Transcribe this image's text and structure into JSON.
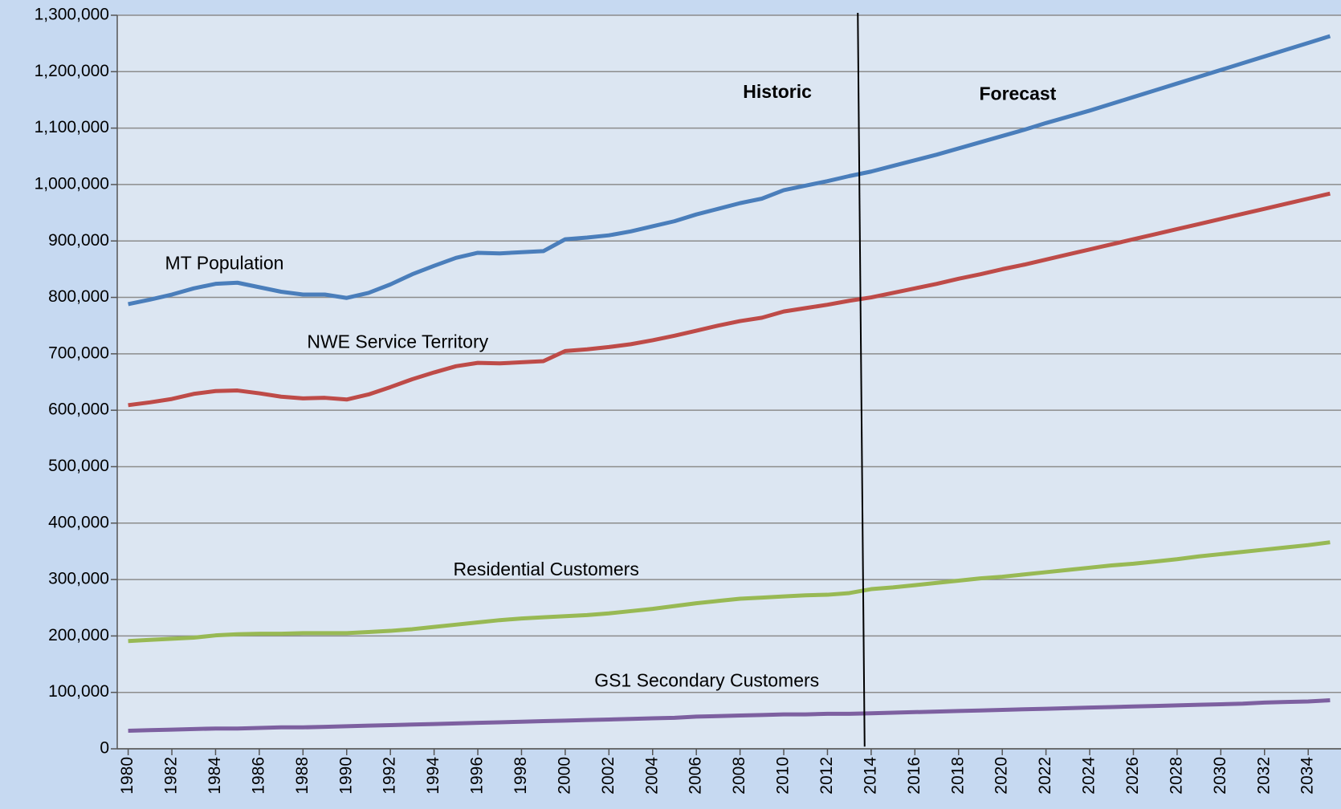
{
  "chart_data": {
    "type": "line",
    "annotations": [
      "MT Population",
      "NWE Service Territory",
      "Residential Customers",
      "GS1 Secondary Customers",
      "Historic",
      "Forecast"
    ],
    "x": [
      1980,
      1981,
      1982,
      1983,
      1984,
      1985,
      1986,
      1987,
      1988,
      1989,
      1990,
      1991,
      1992,
      1993,
      1994,
      1995,
      1996,
      1997,
      1998,
      1999,
      2000,
      2001,
      2002,
      2003,
      2004,
      2005,
      2006,
      2007,
      2008,
      2009,
      2010,
      2011,
      2012,
      2013,
      2014,
      2015,
      2016,
      2017,
      2018,
      2019,
      2020,
      2021,
      2022,
      2023,
      2024,
      2025,
      2026,
      2027,
      2028,
      2029,
      2030,
      2031,
      2032,
      2033,
      2034,
      2035
    ],
    "xlim": [
      1979.5,
      2035.5
    ],
    "xticks": [
      1980,
      1982,
      1984,
      1986,
      1988,
      1990,
      1992,
      1994,
      1996,
      1998,
      2000,
      2002,
      2004,
      2006,
      2008,
      2010,
      2012,
      2014,
      2016,
      2018,
      2020,
      2022,
      2024,
      2026,
      2028,
      2030,
      2032,
      2034
    ],
    "ylim": [
      0,
      1300000
    ],
    "yticks": [
      0,
      {
        "value": 100000,
        "label": "100,000"
      },
      {
        "value": 200000,
        "label": "200,000"
      },
      {
        "value": 300000,
        "label": "300,000"
      },
      {
        "value": 400000,
        "label": "400,000"
      },
      {
        "value": 500000,
        "label": "500,000"
      },
      {
        "value": 600000,
        "label": "600,000"
      },
      {
        "value": 700000,
        "label": "700,000"
      },
      {
        "value": 800000,
        "label": "800,000"
      },
      {
        "value": 900000,
        "label": "900,000"
      },
      {
        "value": 1000000,
        "label": "1,000,000"
      },
      {
        "value": 1100000,
        "label": "1,100,000"
      },
      {
        "value": 1200000,
        "label": "1,200,000"
      },
      {
        "value": 1300000,
        "label": "1,300,000"
      }
    ],
    "grid": true,
    "series": [
      {
        "color": "#4a7ebb",
        "values": [
          788000,
          796000,
          805000,
          816000,
          824000,
          826000,
          818000,
          810000,
          805000,
          805000,
          799000,
          808000,
          823000,
          841000,
          856000,
          870000,
          879000,
          878000,
          880000,
          882000,
          903000,
          906000,
          910000,
          917000,
          926000,
          935000,
          947000,
          957000,
          967000,
          975000,
          990000,
          998000,
          1006000,
          1015000,
          1023000,
          1033000,
          1043000,
          1053000,
          1064000,
          1075000,
          1086000,
          1097000,
          1109000,
          1120000,
          1131000,
          1143000,
          1155000,
          1167000,
          1179000,
          1191000,
          1203000,
          1215000,
          1227000,
          1239000,
          1251000,
          1263000
        ]
      },
      {
        "color": "#be4b48",
        "values": [
          609000,
          614000,
          620000,
          629000,
          634000,
          635000,
          630000,
          624000,
          621000,
          622000,
          619000,
          628000,
          641000,
          655000,
          667000,
          678000,
          684000,
          683000,
          685000,
          687000,
          705000,
          708000,
          712000,
          717000,
          724000,
          732000,
          741000,
          750000,
          758000,
          764000,
          775000,
          781000,
          787000,
          794000,
          800000,
          808000,
          816000,
          824000,
          833000,
          841000,
          850000,
          858000,
          867000,
          876000,
          885000,
          894000,
          903000,
          912000,
          921000,
          930000,
          939000,
          948000,
          957000,
          966000,
          975000,
          984000
        ]
      },
      {
        "color": "#98b954",
        "values": [
          191000,
          193000,
          195000,
          197000,
          201000,
          203000,
          204000,
          204000,
          205000,
          205000,
          205000,
          207000,
          209000,
          212000,
          216000,
          220000,
          224000,
          228000,
          231000,
          233000,
          235000,
          237000,
          240000,
          244000,
          248000,
          253000,
          258000,
          262000,
          266000,
          268000,
          270000,
          272000,
          273000,
          276000,
          283000,
          286000,
          290000,
          294000,
          298000,
          302000,
          305000,
          309000,
          313000,
          317000,
          321000,
          325000,
          328000,
          332000,
          336000,
          341000,
          345000,
          349000,
          353000,
          357000,
          361000,
          366000
        ]
      },
      {
        "color": "#7d60a0",
        "values": [
          32000,
          33000,
          34000,
          35000,
          36000,
          36000,
          37000,
          38000,
          38000,
          39000,
          40000,
          41000,
          42000,
          43000,
          44000,
          45000,
          46000,
          47000,
          48000,
          49000,
          50000,
          51000,
          52000,
          53000,
          54000,
          55000,
          57000,
          58000,
          59000,
          60000,
          61000,
          61000,
          62000,
          62000,
          63000,
          64000,
          65000,
          66000,
          67000,
          68000,
          69000,
          70000,
          71000,
          72000,
          73000,
          74000,
          75000,
          76000,
          77000,
          78000,
          79000,
          80000,
          82000,
          83000,
          84000,
          86000
        ]
      }
    ]
  }
}
